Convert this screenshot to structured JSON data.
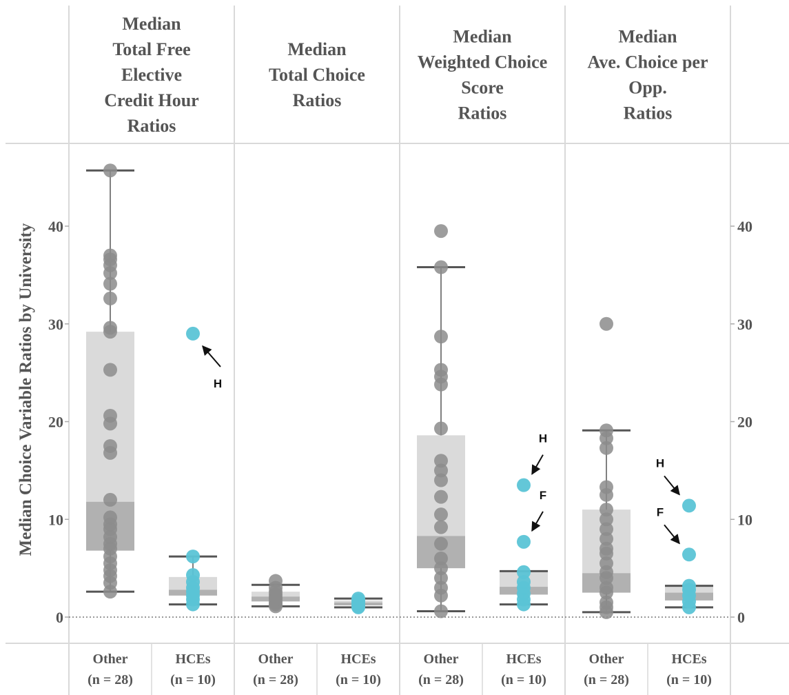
{
  "chart_data": {
    "type": "box",
    "ylabel": "Median Choice Variable Ratios by University",
    "ylim": [
      0,
      48
    ],
    "yticks": [
      0,
      10,
      20,
      30,
      40
    ],
    "reference_line": 0,
    "colors": {
      "Other": "#8c8c8c",
      "HCEs": "#5bc4d6",
      "box_upper": "#d6d6d6",
      "box_lower": "#a9a9a9",
      "whisker": "#555555",
      "grid": "#d9d9d9",
      "text": "#555555"
    },
    "panels": [
      {
        "title_lines": [
          "Median",
          "Total Free",
          "Elective",
          "Credit Hour",
          "Ratios"
        ],
        "groups": [
          {
            "label_lines": [
              "Other",
              "(n = 28)"
            ],
            "series": "Other",
            "box": {
              "min": 2.6,
              "q1": 6.8,
              "median": 11.8,
              "q3": 29.2,
              "max": 45.7
            },
            "points": [
              2.6,
              3.5,
              4.2,
              4.8,
              5.5,
              6.2,
              7.0,
              7.5,
              8.2,
              9.0,
              9.5,
              10.2,
              12.0,
              16.8,
              17.5,
              19.8,
              20.6,
              25.3,
              29.2,
              29.6,
              32.6,
              34.1,
              35.2,
              36.0,
              36.6,
              37.0,
              45.7
            ]
          },
          {
            "label_lines": [
              "HCEs",
              "(n = 10)"
            ],
            "series": "HCEs",
            "box": {
              "min": 1.3,
              "q1": 2.2,
              "median": 2.8,
              "q3": 4.1,
              "max": 6.2
            },
            "points": [
              1.3,
              1.8,
              2.2,
              2.6,
              3.0,
              3.6,
              4.3,
              6.2,
              29.0
            ],
            "annotations": [
              {
                "text": "H",
                "y": 29.0
              }
            ]
          }
        ]
      },
      {
        "title_lines": [
          "Median",
          "Total Choice",
          "Ratios"
        ],
        "groups": [
          {
            "label_lines": [
              "Other",
              "(n = 28)"
            ],
            "series": "Other",
            "box": {
              "min": 1.1,
              "q1": 1.6,
              "median": 2.1,
              "q3": 2.6,
              "max": 3.3
            },
            "points": [
              1.1,
              1.3,
              1.5,
              1.8,
              2.0,
              2.3,
              2.6,
              3.0,
              3.7
            ]
          },
          {
            "label_lines": [
              "HCEs",
              "(n = 10)"
            ],
            "series": "HCEs",
            "box": {
              "min": 1.0,
              "q1": 1.2,
              "median": 1.5,
              "q3": 1.7,
              "max": 1.9
            },
            "points": [
              1.0,
              1.1,
              1.3,
              1.5,
              1.7,
              1.9
            ]
          }
        ]
      },
      {
        "title_lines": [
          "Median",
          "Weighted Choice",
          "Score",
          "Ratios"
        ],
        "groups": [
          {
            "label_lines": [
              "Other",
              "(n = 28)"
            ],
            "series": "Other",
            "box": {
              "min": 0.6,
              "q1": 5.0,
              "median": 8.3,
              "q3": 18.6,
              "max": 35.8
            },
            "points": [
              0.6,
              2.2,
              3.0,
              4.0,
              5.0,
              6.0,
              7.5,
              9.2,
              10.5,
              12.3,
              14.0,
              15.0,
              16.0,
              19.3,
              23.8,
              24.6,
              25.3,
              28.7,
              35.8,
              39.5
            ]
          },
          {
            "label_lines": [
              "HCEs",
              "(n = 10)"
            ],
            "series": "HCEs",
            "box": {
              "min": 1.3,
              "q1": 2.3,
              "median": 3.1,
              "q3": 4.7,
              "max": 4.7
            },
            "points": [
              1.3,
              1.8,
              2.4,
              3.0,
              3.6,
              4.6,
              7.7,
              13.5
            ],
            "annotations": [
              {
                "text": "H",
                "y": 13.5
              },
              {
                "text": "F",
                "y": 7.7
              }
            ]
          }
        ]
      },
      {
        "title_lines": [
          "Median",
          "Ave. Choice per",
          "Opp.",
          "Ratios"
        ],
        "groups": [
          {
            "label_lines": [
              "Other",
              "(n = 28)"
            ],
            "series": "Other",
            "box": {
              "min": 0.5,
              "q1": 2.5,
              "median": 4.5,
              "q3": 11.0,
              "max": 19.1
            },
            "points": [
              0.5,
              1.0,
              1.5,
              2.5,
              3.0,
              4.0,
              4.6,
              5.5,
              6.5,
              7.0,
              8.0,
              9.0,
              10.0,
              11.0,
              12.5,
              13.3,
              17.3,
              18.3,
              19.1,
              30.0
            ]
          },
          {
            "label_lines": [
              "HCEs",
              "(n = 10)"
            ],
            "series": "HCEs",
            "box": {
              "min": 1.0,
              "q1": 1.7,
              "median": 2.5,
              "q3": 3.2,
              "max": 3.2
            },
            "points": [
              1.0,
              1.6,
              2.2,
              2.8,
              3.2,
              6.4,
              11.4
            ],
            "annotations": [
              {
                "text": "H",
                "y": 11.4
              },
              {
                "text": "F",
                "y": 6.4
              }
            ]
          }
        ]
      }
    ]
  }
}
